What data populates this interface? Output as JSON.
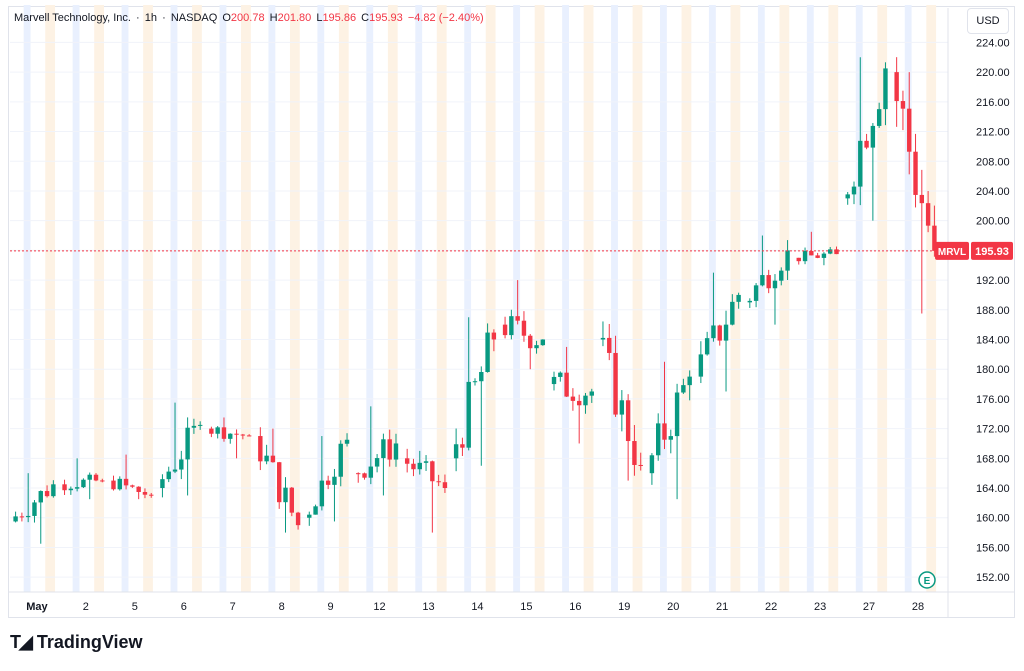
{
  "header": {
    "symbol_name": "Marvell Technology, Inc.",
    "sep1": "·",
    "interval": "1h",
    "sep2": "·",
    "exchange": "NASDAQ",
    "open_label": "O",
    "open": "200.78",
    "high_label": "H",
    "high": "201.80",
    "low_label": "L",
    "low": "195.86",
    "close_label": "C",
    "close": "195.93",
    "change": "−4.82 (−2.40%)"
  },
  "currency": "USD",
  "brand": "TradingView",
  "last_price_tag": {
    "ticker": "MRVL",
    "price": "195.93"
  },
  "colors": {
    "up": "#089981",
    "down": "#f23645",
    "premarket_band": "#e9f0fe",
    "postmarket_band": "#fdf2e4",
    "grid": "#f0f3fa"
  },
  "chart_data": {
    "type": "candlestick",
    "title": "Marvell Technology, Inc. · 1h · NASDAQ",
    "y_axis": {
      "ticks": [
        "152.00",
        "156.00",
        "160.00",
        "164.00",
        "168.00",
        "172.00",
        "176.00",
        "180.00",
        "184.00",
        "188.00",
        "192.00",
        "196.00",
        "200.00",
        "204.00",
        "208.00",
        "212.00",
        "216.00",
        "220.00",
        "224.00"
      ],
      "range": [
        150,
        225
      ]
    },
    "x_axis": {
      "ticks": [
        "May",
        "2",
        "5",
        "6",
        "7",
        "8",
        "9",
        "12",
        "13",
        "14",
        "15",
        "16",
        "19",
        "20",
        "21",
        "22",
        "23",
        "27",
        "28"
      ]
    },
    "grid": true,
    "last_price": 195.93,
    "daily_series": [
      {
        "day": "May",
        "open": 159.5,
        "high": 166.0,
        "low": 156.5,
        "close": 164.5
      },
      {
        "day": "2",
        "open": 164.5,
        "high": 168.0,
        "low": 162.5,
        "close": 165.0
      },
      {
        "day": "5",
        "open": 165.0,
        "high": 168.5,
        "low": 162.5,
        "close": 163.0
      },
      {
        "day": "6",
        "open": 164.0,
        "high": 175.5,
        "low": 163.0,
        "close": 172.5
      },
      {
        "day": "7",
        "open": 172.0,
        "high": 173.5,
        "low": 168.0,
        "close": 171.0
      },
      {
        "day": "8",
        "open": 171.0,
        "high": 172.0,
        "low": 158.0,
        "close": 159.0
      },
      {
        "day": "9",
        "open": 160.0,
        "high": 171.0,
        "low": 159.5,
        "close": 170.5
      },
      {
        "day": "12",
        "open": 166.0,
        "high": 175.0,
        "low": 163.0,
        "close": 170.0
      },
      {
        "day": "13",
        "open": 168.0,
        "high": 169.0,
        "low": 158.0,
        "close": 164.0
      },
      {
        "day": "14",
        "open": 168.0,
        "high": 187.0,
        "low": 167.0,
        "close": 184.0
      },
      {
        "day": "15",
        "open": 186.0,
        "high": 192.0,
        "low": 180.0,
        "close": 184.0
      },
      {
        "day": "16",
        "open": 178.0,
        "high": 183.0,
        "low": 170.0,
        "close": 177.0
      },
      {
        "day": "19",
        "open": 184.0,
        "high": 184.5,
        "low": 165.0,
        "close": 167.0
      },
      {
        "day": "20",
        "open": 166.0,
        "high": 181.0,
        "low": 162.5,
        "close": 179.0
      },
      {
        "day": "21",
        "open": 179.0,
        "high": 193.0,
        "low": 177.0,
        "close": 190.0
      },
      {
        "day": "22",
        "open": 189.0,
        "high": 198.0,
        "low": 186.0,
        "close": 196.0
      },
      {
        "day": "23",
        "open": 195.0,
        "high": 198.5,
        "low": 194.0,
        "close": 195.5
      },
      {
        "day": "27",
        "open": 203.0,
        "high": 222.0,
        "low": 200.0,
        "close": 220.5
      },
      {
        "day": "28",
        "open": 220.0,
        "high": 220.0,
        "low": 187.5,
        "close": 195.93
      }
    ]
  }
}
